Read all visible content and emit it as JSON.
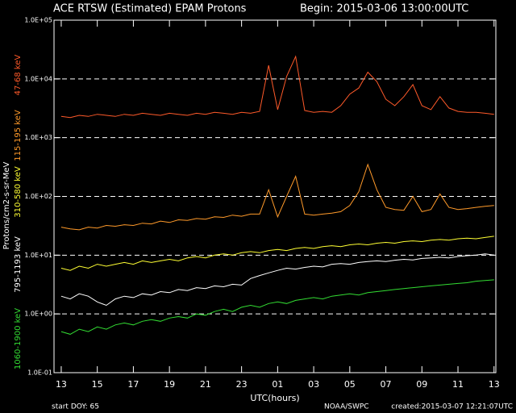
{
  "chart_data": {
    "type": "line",
    "title": "ACE RTSW (Estimated) EPAM Protons",
    "subtitle": "Begin: 2015-03-06 13:00:00UTC",
    "y_label": "Protons/cm2-s-sr-MeV",
    "x_label": "UTC(hours)",
    "footer_left": "start DOY:   65",
    "footer_center": "NOAA/SWPC",
    "footer_right": "created:2015-03-07 12:21:07UTC",
    "log_y": true,
    "grid": true,
    "xlim": [
      -0.4,
      24.1
    ],
    "ylim": [
      0.1,
      100000
    ],
    "xticks": [
      {
        "value": 0,
        "label": "13"
      },
      {
        "value": 2,
        "label": "15"
      },
      {
        "value": 4,
        "label": "17"
      },
      {
        "value": 6,
        "label": "19"
      },
      {
        "value": 8,
        "label": "21"
      },
      {
        "value": 10,
        "label": "23"
      },
      {
        "value": 12,
        "label": "01"
      },
      {
        "value": 14,
        "label": "03"
      },
      {
        "value": 16,
        "label": "05"
      },
      {
        "value": 18,
        "label": "07"
      },
      {
        "value": 20,
        "label": "09"
      },
      {
        "value": 22,
        "label": "11"
      },
      {
        "value": 24,
        "label": "13"
      }
    ],
    "yticks": [
      {
        "value": 0.1,
        "label": "1.0E-01"
      },
      {
        "value": 1,
        "label": "1.0E+00"
      },
      {
        "value": 10,
        "label": "1.0E+01"
      },
      {
        "value": 100,
        "label": "1.0E+02"
      },
      {
        "value": 1000,
        "label": "1.0E+03"
      },
      {
        "value": 10000,
        "label": "1.0E+04"
      },
      {
        "value": 100000,
        "label": "1.0E+05"
      }
    ],
    "x": [
      0,
      0.5,
      1,
      1.5,
      2,
      2.5,
      3,
      3.5,
      4,
      4.5,
      5,
      5.5,
      6,
      6.5,
      7,
      7.5,
      8,
      8.5,
      9,
      9.5,
      10,
      10.5,
      11,
      11.5,
      12,
      12.5,
      13,
      13.5,
      14,
      14.5,
      15,
      15.5,
      16,
      16.5,
      17,
      17.5,
      18,
      18.5,
      19,
      19.5,
      20,
      20.5,
      21,
      21.5,
      22,
      22.5,
      23,
      23.5,
      24
    ],
    "series": [
      {
        "name": "47-68 keV",
        "color": "#ff5a2a",
        "values": [
          2300,
          2200,
          2400,
          2300,
          2500,
          2400,
          2300,
          2500,
          2400,
          2600,
          2500,
          2400,
          2600,
          2500,
          2400,
          2600,
          2500,
          2700,
          2600,
          2500,
          2700,
          2600,
          2800,
          17000,
          3000,
          11000,
          24000,
          2900,
          2700,
          2800,
          2700,
          3500,
          5500,
          7000,
          13000,
          9000,
          4500,
          3500,
          5000,
          8000,
          3500,
          3000,
          5000,
          3200,
          2800,
          2700,
          2700,
          2600,
          2500
        ]
      },
      {
        "name": "115-195 keV",
        "color": "#ff9a2a",
        "values": [
          30,
          28,
          27,
          30,
          29,
          32,
          31,
          33,
          32,
          35,
          34,
          38,
          36,
          40,
          39,
          42,
          41,
          45,
          44,
          48,
          46,
          50,
          50,
          130,
          45,
          100,
          220,
          50,
          48,
          50,
          52,
          55,
          70,
          120,
          350,
          130,
          65,
          60,
          58,
          100,
          55,
          60,
          110,
          65,
          60,
          62,
          65,
          68,
          70
        ]
      },
      {
        "name": "310-580 keV",
        "color": "#ffff33",
        "values": [
          6,
          5.5,
          6.5,
          6,
          7,
          6.5,
          7,
          7.5,
          7,
          8,
          7.5,
          8,
          8.5,
          8,
          9,
          9.5,
          9,
          10,
          10.5,
          10,
          11,
          11.5,
          11,
          12,
          12.5,
          12,
          13,
          13.5,
          13,
          14,
          14.5,
          14,
          15,
          15.5,
          15,
          16,
          16.5,
          16,
          17,
          17.5,
          17,
          18,
          18.5,
          18,
          19,
          19.5,
          19,
          20,
          21
        ]
      },
      {
        "name": "795-1193 keV",
        "color": "#ffffff",
        "values": [
          2,
          1.8,
          2.2,
          2,
          1.6,
          1.4,
          1.8,
          2,
          1.9,
          2.2,
          2.1,
          2.4,
          2.3,
          2.6,
          2.5,
          2.8,
          2.7,
          3,
          2.9,
          3.2,
          3.1,
          4,
          4.5,
          5,
          5.5,
          6,
          5.8,
          6.2,
          6.5,
          6.3,
          7,
          7.2,
          7,
          7.5,
          7.8,
          8,
          7.8,
          8.2,
          8.5,
          8.3,
          8.8,
          9,
          9.2,
          9,
          9.5,
          9.8,
          10,
          10.5,
          10
        ]
      },
      {
        "name": "1060-1900 keV",
        "color": "#33dd33",
        "values": [
          0.5,
          0.45,
          0.55,
          0.5,
          0.6,
          0.55,
          0.65,
          0.7,
          0.65,
          0.75,
          0.8,
          0.75,
          0.85,
          0.9,
          0.85,
          1,
          0.95,
          1.1,
          1.2,
          1.1,
          1.3,
          1.4,
          1.3,
          1.5,
          1.6,
          1.5,
          1.7,
          1.8,
          1.9,
          1.8,
          2,
          2.1,
          2.2,
          2.1,
          2.3,
          2.4,
          2.5,
          2.6,
          2.7,
          2.8,
          2.9,
          3,
          3.1,
          3.2,
          3.3,
          3.4,
          3.6,
          3.7,
          3.8
        ]
      }
    ]
  }
}
